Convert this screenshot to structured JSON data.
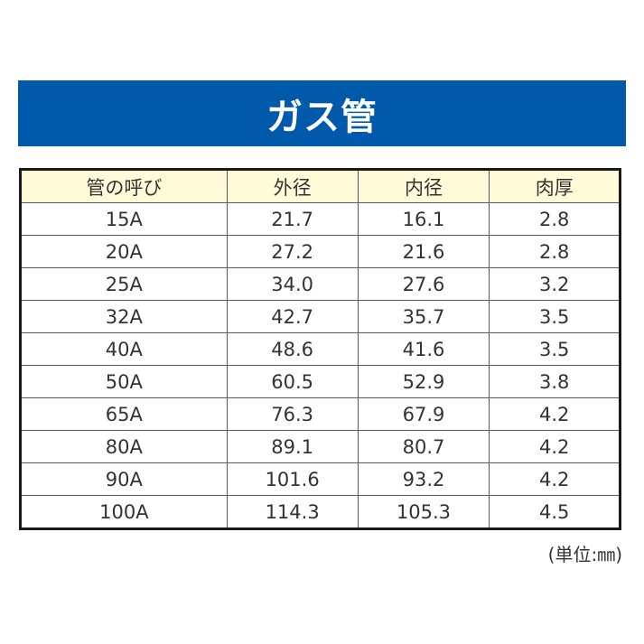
{
  "banner": {
    "title": "ガス管",
    "color": "#0059ab"
  },
  "table": {
    "headers": [
      "管の呼び",
      "外径",
      "内径",
      "肉厚"
    ],
    "header_bg": "#fffbd9",
    "rows": [
      [
        "15A",
        "21.7",
        "16.1",
        "2.8"
      ],
      [
        "20A",
        "27.2",
        "21.6",
        "2.8"
      ],
      [
        "25A",
        "34.0",
        "27.6",
        "3.2"
      ],
      [
        "32A",
        "42.7",
        "35.7",
        "3.5"
      ],
      [
        "40A",
        "48.6",
        "41.6",
        "3.5"
      ],
      [
        "50A",
        "60.5",
        "52.9",
        "3.8"
      ],
      [
        "65A",
        "76.3",
        "67.9",
        "4.2"
      ],
      [
        "80A",
        "89.1",
        "80.7",
        "4.2"
      ],
      [
        "90A",
        "101.6",
        "93.2",
        "4.2"
      ],
      [
        "100A",
        "114.3",
        "105.3",
        "4.5"
      ]
    ]
  },
  "unit_note": "(単位:㎜)"
}
